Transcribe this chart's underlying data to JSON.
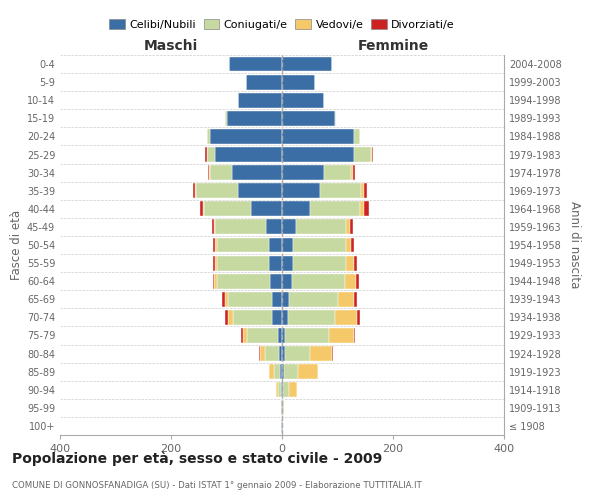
{
  "age_groups": [
    "100+",
    "95-99",
    "90-94",
    "85-89",
    "80-84",
    "75-79",
    "70-74",
    "65-69",
    "60-64",
    "55-59",
    "50-54",
    "45-49",
    "40-44",
    "35-39",
    "30-34",
    "25-29",
    "20-24",
    "15-19",
    "10-14",
    "5-9",
    "0-4"
  ],
  "birth_years": [
    "≤ 1908",
    "1909-1913",
    "1914-1918",
    "1919-1923",
    "1924-1928",
    "1929-1933",
    "1934-1938",
    "1939-1943",
    "1944-1948",
    "1949-1953",
    "1954-1958",
    "1959-1963",
    "1964-1968",
    "1969-1973",
    "1974-1978",
    "1979-1983",
    "1984-1988",
    "1989-1993",
    "1994-1998",
    "1999-2003",
    "2004-2008"
  ],
  "colors": {
    "celibi": "#3A6EA5",
    "coniugati": "#C5D9A0",
    "vedovi": "#F5C96A",
    "divorziati": "#CC2222"
  },
  "maschi": {
    "celibi": [
      1,
      1,
      2,
      4,
      5,
      8,
      18,
      18,
      22,
      23,
      23,
      28,
      55,
      80,
      90,
      120,
      130,
      100,
      80,
      65,
      95
    ],
    "coniugati": [
      0,
      0,
      5,
      10,
      25,
      55,
      70,
      80,
      95,
      95,
      95,
      92,
      85,
      75,
      40,
      15,
      5,
      2,
      0,
      0,
      0
    ],
    "vedovi": [
      0,
      0,
      4,
      10,
      10,
      8,
      10,
      5,
      5,
      3,
      3,
      2,
      2,
      2,
      1,
      1,
      0,
      0,
      0,
      0,
      0
    ],
    "divorziati": [
      0,
      0,
      0,
      0,
      2,
      2,
      5,
      5,
      3,
      4,
      4,
      4,
      5,
      4,
      2,
      2,
      1,
      0,
      0,
      0,
      0
    ]
  },
  "femmine": {
    "celibi": [
      1,
      1,
      2,
      4,
      5,
      5,
      10,
      12,
      18,
      20,
      20,
      25,
      50,
      68,
      75,
      130,
      130,
      95,
      75,
      60,
      90
    ],
    "coniugati": [
      0,
      0,
      10,
      25,
      45,
      80,
      85,
      88,
      95,
      95,
      95,
      90,
      90,
      75,
      50,
      30,
      10,
      2,
      0,
      0,
      0
    ],
    "vedovi": [
      1,
      2,
      15,
      35,
      40,
      45,
      40,
      30,
      20,
      15,
      10,
      8,
      8,
      5,
      3,
      2,
      0,
      0,
      0,
      0,
      0
    ],
    "divorziati": [
      0,
      0,
      0,
      0,
      2,
      2,
      5,
      5,
      5,
      5,
      5,
      5,
      8,
      5,
      4,
      2,
      1,
      0,
      0,
      0,
      0
    ]
  },
  "title": "Popolazione per età, sesso e stato civile - 2009",
  "subtitle": "COMUNE DI GONNOSFANADIGA (SU) - Dati ISTAT 1° gennaio 2009 - Elaborazione TUTTITALIA.IT",
  "ylabel": "Fasce di età",
  "ylabel2": "Anni di nascita",
  "label_maschi": "Maschi",
  "label_femmine": "Femmine",
  "xlim": 400,
  "legend_labels": [
    "Celibi/Nubili",
    "Coniugati/e",
    "Vedovi/e",
    "Divorziati/e"
  ],
  "bg_color": "#FFFFFF",
  "grid_color": "#CCCCCC"
}
